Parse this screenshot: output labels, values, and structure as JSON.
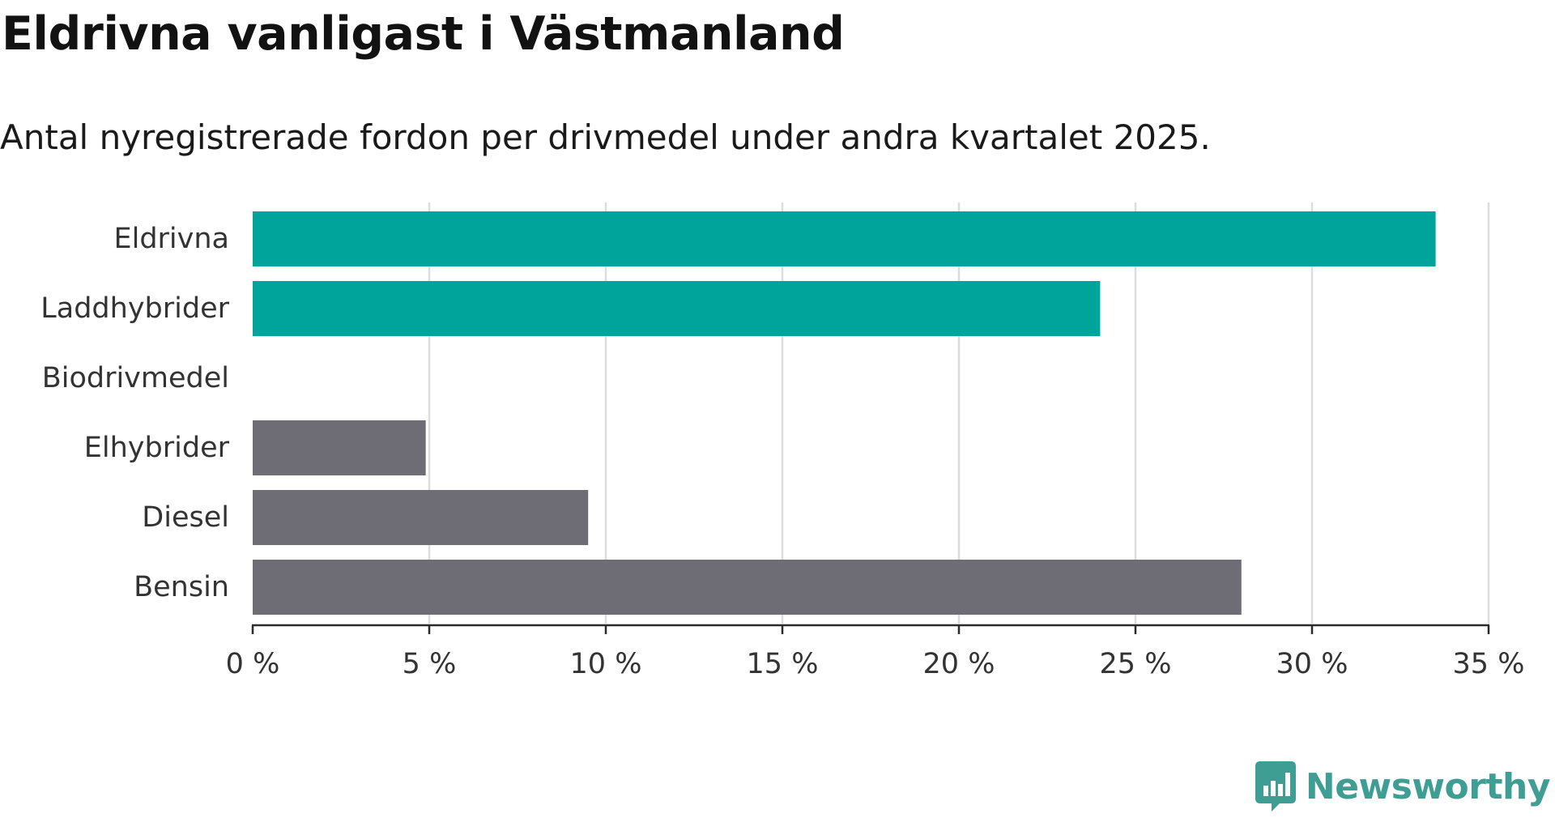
{
  "header": {
    "title": "Eldrivna vanligast i Västmanland",
    "subtitle": "Antal nyregistrerade fordon per drivmedel under andra kvartalet 2025."
  },
  "brand": {
    "name": "Newsworthy",
    "icon": "newsworthy-logo-icon",
    "color": "#3e9e94"
  },
  "chart_data": {
    "type": "bar",
    "orientation": "horizontal",
    "title": "Eldrivna vanligast i Västmanland",
    "subtitle": "Antal nyregistrerade fordon per drivmedel under andra kvartalet 2025.",
    "categories": [
      "Eldrivna",
      "Laddhybrider",
      "Biodrivmedel",
      "Elhybrider",
      "Diesel",
      "Bensin"
    ],
    "values": [
      33.5,
      24.0,
      0,
      4.9,
      9.5,
      28.0
    ],
    "unit": "%",
    "colors": [
      "#00a49b",
      "#00a49b",
      "#00a49b",
      "#6e6d75",
      "#6e6d75",
      "#6e6d75"
    ],
    "xlim": [
      0,
      35
    ],
    "xticks": [
      0,
      5,
      10,
      15,
      20,
      25,
      30,
      35
    ],
    "xtick_labels": [
      "0 %",
      "5 %",
      "10 %",
      "15 %",
      "20 %",
      "25 %",
      "30 %",
      "35 %"
    ],
    "grid": true,
    "legend": "none"
  }
}
